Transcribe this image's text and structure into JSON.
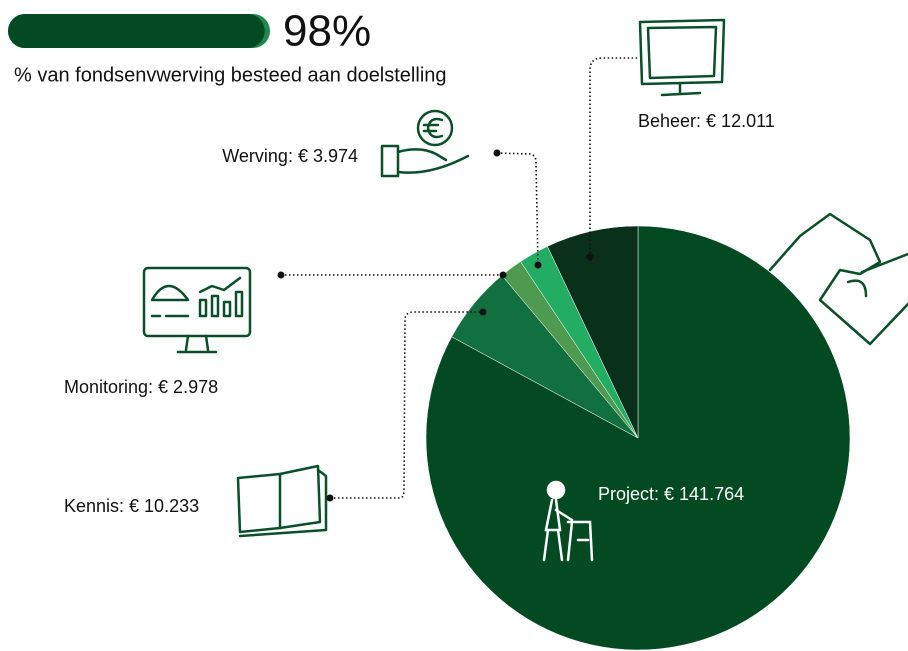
{
  "progress": {
    "value": 98,
    "label": "98%",
    "caption": "% van fondsenvwerving besteed aan doelstelling",
    "color": "#034a22",
    "track_color": "#1f8a4f"
  },
  "chart_data": {
    "type": "pie",
    "values": [
      141764,
      10233,
      2978,
      3974,
      12011
    ],
    "value_labels": [
      "Project: € 141.764",
      "Kennis: € 10.233",
      "Monitoring: € 2.978",
      "Werving: € 3.974",
      "Beheer: € 12.011"
    ],
    "colors": [
      "#034a22",
      "#127040",
      "#4e9a50",
      "#22ad63",
      "#08301a"
    ]
  }
}
